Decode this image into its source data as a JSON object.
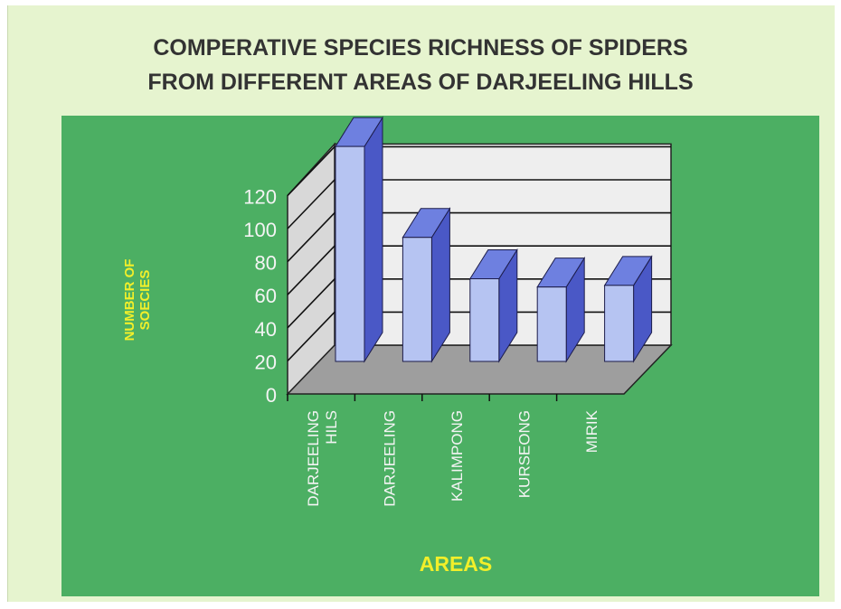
{
  "colors": {
    "slide_background": "#e6f4cf",
    "plot_panel": "#4caf63",
    "back_wall": "#eeeeee",
    "side_wall": "#d8d8d8",
    "floor": "#9e9e9e",
    "bar_front": "#b6c4f2",
    "bar_top": "#6e80e0",
    "bar_side": "#4a58c6",
    "axis_text": "#f4f4f4",
    "axis_title_text": "#f2ef2a",
    "title_text": "#333333"
  },
  "chart_data": {
    "type": "bar",
    "style": "3d-column",
    "title_lines": [
      "COMPERATIVE SPECIES RICHNESS OF SPIDERS",
      "FROM DIFFERENT AREAS OF DARJEELING HILLS"
    ],
    "xlabel": "AREAS",
    "ylabel_lines": [
      "NUMBER OF",
      "SOECIES"
    ],
    "categories": [
      [
        "DARJEELING",
        "HILS"
      ],
      [
        "DARJEELING"
      ],
      [
        "KALIMPONG"
      ],
      [
        "KURSEONG"
      ],
      [
        "MIRIK"
      ]
    ],
    "values": [
      130,
      75,
      50,
      45,
      46
    ],
    "ylim": [
      0,
      120
    ],
    "yticks": [
      0,
      20,
      40,
      60,
      80,
      100,
      120
    ],
    "grid": true,
    "legend": "none"
  }
}
